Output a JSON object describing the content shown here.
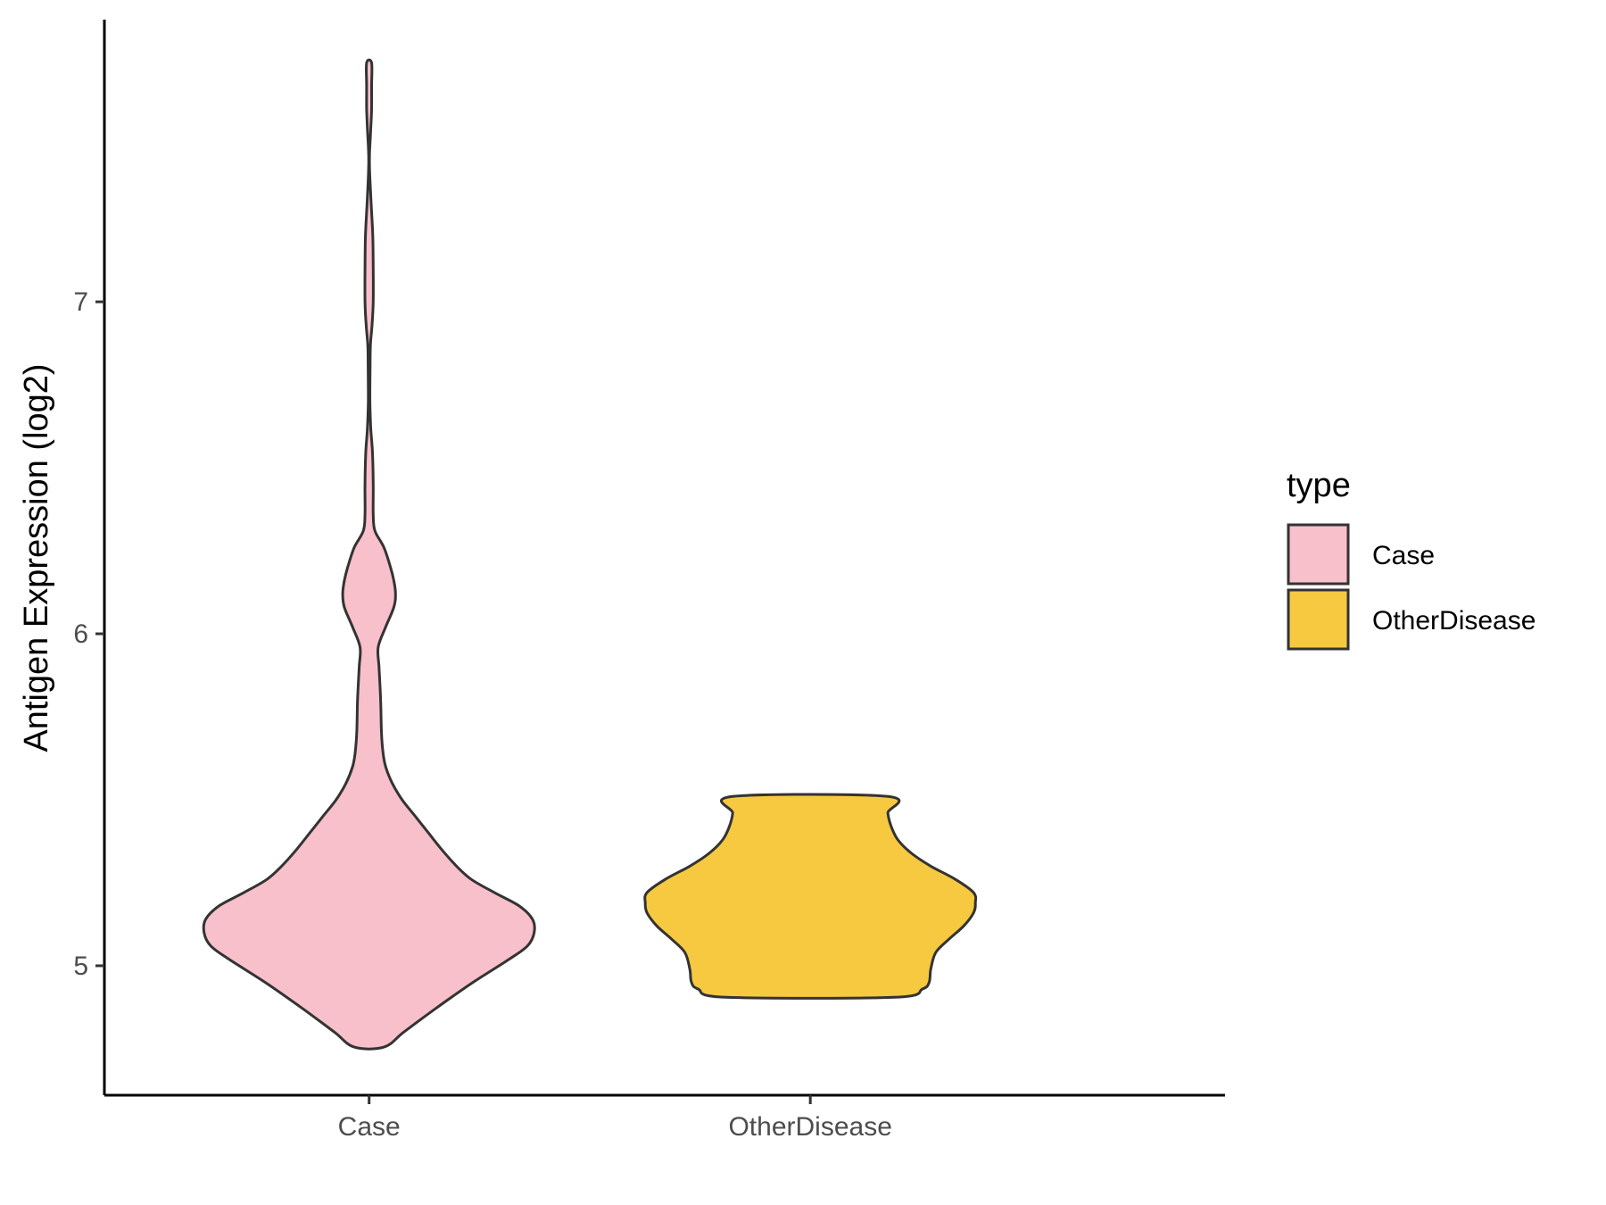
{
  "chart_data": {
    "type": "violin",
    "xlabel": "",
    "ylabel": "Antigen Expression (log2)",
    "categories": [
      "Case",
      "OtherDisease"
    ],
    "yticks": [
      "5",
      "6",
      "7"
    ],
    "ylim": [
      4.61,
      7.85
    ],
    "grid": false,
    "legend": {
      "title": "type",
      "placement": "right",
      "entries": [
        {
          "label": "Case",
          "color": "#F8C0CB"
        },
        {
          "label": "OtherDisease",
          "color": "#F6C940"
        }
      ]
    },
    "outline_color": "#333333",
    "series": [
      {
        "category": "Case",
        "color": "#F8C0CB",
        "min": 4.755,
        "max": 7.72,
        "density_profile": [
          [
            4.755,
            0.09
          ],
          [
            4.8,
            0.21
          ],
          [
            4.87,
            0.4
          ],
          [
            4.95,
            0.63
          ],
          [
            5.02,
            0.85
          ],
          [
            5.06,
            0.96
          ],
          [
            5.1,
            1.0
          ],
          [
            5.14,
            0.99
          ],
          [
            5.18,
            0.91
          ],
          [
            5.22,
            0.76
          ],
          [
            5.26,
            0.62
          ],
          [
            5.3,
            0.53
          ],
          [
            5.35,
            0.44
          ],
          [
            5.4,
            0.36
          ],
          [
            5.45,
            0.28
          ],
          [
            5.5,
            0.2
          ],
          [
            5.55,
            0.14
          ],
          [
            5.6,
            0.1
          ],
          [
            5.64,
            0.085
          ],
          [
            5.7,
            0.075
          ],
          [
            5.8,
            0.07
          ],
          [
            5.9,
            0.06
          ],
          [
            5.96,
            0.055
          ],
          [
            6.02,
            0.1
          ],
          [
            6.08,
            0.15
          ],
          [
            6.12,
            0.16
          ],
          [
            6.16,
            0.15
          ],
          [
            6.2,
            0.13
          ],
          [
            6.26,
            0.09
          ],
          [
            6.31,
            0.035
          ],
          [
            6.36,
            0.025
          ],
          [
            6.45,
            0.025
          ],
          [
            6.55,
            0.02
          ],
          [
            6.62,
            0.01
          ],
          [
            6.7,
            0.005
          ],
          [
            6.8,
            0.006
          ],
          [
            6.87,
            0.008
          ],
          [
            6.93,
            0.018
          ],
          [
            7.0,
            0.025
          ],
          [
            7.1,
            0.025
          ],
          [
            7.2,
            0.022
          ],
          [
            7.3,
            0.012
          ],
          [
            7.4,
            0.003
          ],
          [
            7.45,
            0.003
          ],
          [
            7.52,
            0.01
          ],
          [
            7.58,
            0.015
          ],
          [
            7.65,
            0.015
          ],
          [
            7.72,
            0.015
          ]
        ]
      },
      {
        "category": "OtherDisease",
        "color": "#F6C940",
        "min": 4.905,
        "max": 5.51,
        "density_profile": [
          [
            4.905,
            0.51
          ],
          [
            4.93,
            0.68
          ],
          [
            4.95,
            0.72
          ],
          [
            4.99,
            0.73
          ],
          [
            5.04,
            0.76
          ],
          [
            5.08,
            0.84
          ],
          [
            5.12,
            0.93
          ],
          [
            5.16,
            0.99
          ],
          [
            5.19,
            1.0
          ],
          [
            5.22,
            0.99
          ],
          [
            5.26,
            0.88
          ],
          [
            5.3,
            0.73
          ],
          [
            5.34,
            0.61
          ],
          [
            5.38,
            0.53
          ],
          [
            5.42,
            0.49
          ],
          [
            5.46,
            0.47
          ],
          [
            5.51,
            0.47
          ]
        ]
      }
    ]
  }
}
